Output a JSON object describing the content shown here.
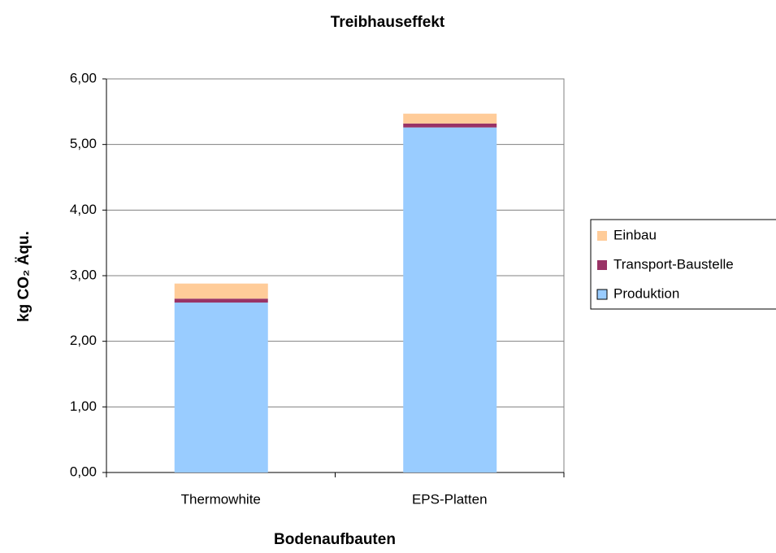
{
  "chart_data": {
    "type": "bar",
    "stacked": true,
    "title": "Treibhauseffekt",
    "x_label": "Bodenaufbauten",
    "y_label": "kg CO₂ Äqu.",
    "categories": [
      "Thermowhite",
      "EPS-Platten"
    ],
    "series": [
      {
        "name": "Produktion",
        "color": "#99ccff",
        "values": [
          2.59,
          5.26
        ]
      },
      {
        "name": "Transport-Baustelle",
        "color": "#993366",
        "values": [
          0.06,
          0.06
        ]
      },
      {
        "name": "Einbau",
        "color": "#ffcc99",
        "values": [
          0.23,
          0.15
        ]
      }
    ],
    "ylim": [
      0,
      6
    ],
    "yticks": [
      {
        "value": 0,
        "label": "0,00"
      },
      {
        "value": 1,
        "label": "1,00"
      },
      {
        "value": 2,
        "label": "2,00"
      },
      {
        "value": 3,
        "label": "3,00"
      },
      {
        "value": 4,
        "label": "4,00"
      },
      {
        "value": 5,
        "label": "5,00"
      },
      {
        "value": 6,
        "label": "6,00"
      }
    ],
    "grid": true,
    "legend": "right"
  }
}
